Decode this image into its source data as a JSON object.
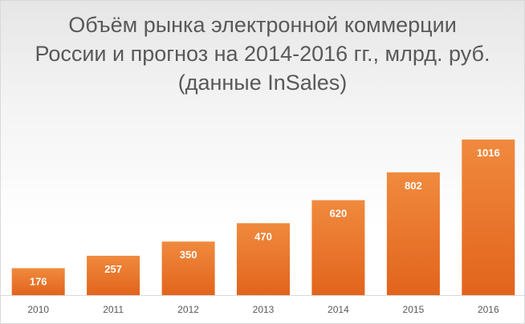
{
  "chart_title": "Объём рынка электронной коммерции России и прогноз на 2014-2016 гг., млрд. руб. (данные InSales)",
  "colors": {
    "bar_top": "#f08a3e",
    "bar_bottom": "#e2641c",
    "axis_line": "#d9d9d9"
  },
  "chart_data": {
    "type": "bar",
    "title": "Объём рынка электронной коммерции России и прогноз на 2014-2016 гг., млрд. руб. (данные InSales)",
    "categories": [
      "2010",
      "2011",
      "2012",
      "2013",
      "2014",
      "2015",
      "2016"
    ],
    "values": [
      176,
      257,
      350,
      470,
      620,
      802,
      1016
    ],
    "data_labels": [
      "176",
      "257",
      "350",
      "470",
      "620",
      "802",
      "1016"
    ],
    "xlabel": "",
    "ylabel": "",
    "ylim": [
      0,
      1016
    ],
    "grid": false,
    "legend": "none"
  }
}
